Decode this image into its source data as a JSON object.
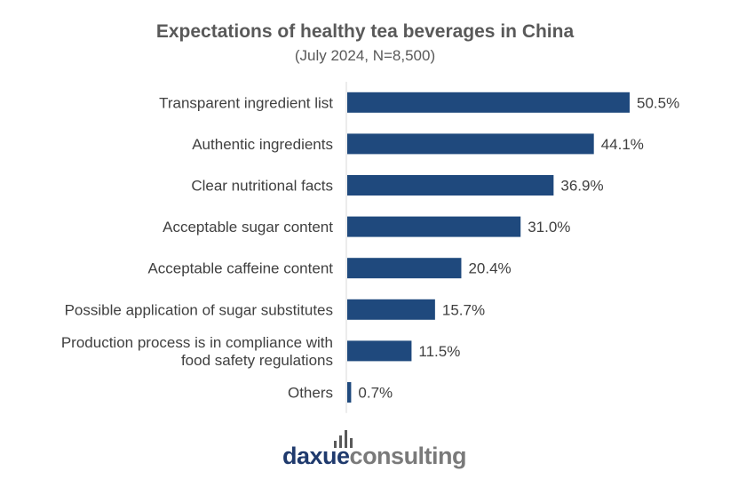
{
  "chart_data": {
    "type": "bar",
    "orientation": "horizontal",
    "title": "Expectations of healthy tea beverages in China",
    "subtitle": "(July 2024, N=8,500)",
    "categories": [
      "Transparent ingredient list",
      "Authentic ingredients",
      "Clear nutritional facts",
      "Acceptable sugar content",
      "Acceptable caffeine content",
      "Possible application of sugar substitutes",
      "Production process is in compliance with food safety regulations",
      "Others"
    ],
    "category_lines": [
      [
        "Transparent ingredient list"
      ],
      [
        "Authentic ingredients"
      ],
      [
        "Clear nutritional facts"
      ],
      [
        "Acceptable sugar content"
      ],
      [
        "Acceptable caffeine content"
      ],
      [
        "Possible application of sugar substitutes"
      ],
      [
        "Production process is in compliance with",
        "food safety regulations"
      ],
      [
        "Others"
      ]
    ],
    "values": [
      50.5,
      44.1,
      36.9,
      31.0,
      20.4,
      15.7,
      11.5,
      0.7
    ],
    "value_labels": [
      "50.5%",
      "44.1%",
      "36.9%",
      "31.0%",
      "20.4%",
      "15.7%",
      "11.5%",
      "0.7%"
    ],
    "bar_color": "#1f497d",
    "axis_line": true,
    "gridlines": false,
    "legend": "none"
  },
  "logo": {
    "part1": "daxue",
    "part2": "consulting",
    "color_part1": "#1f3a6d",
    "color_part2": "#7a7a7a"
  }
}
